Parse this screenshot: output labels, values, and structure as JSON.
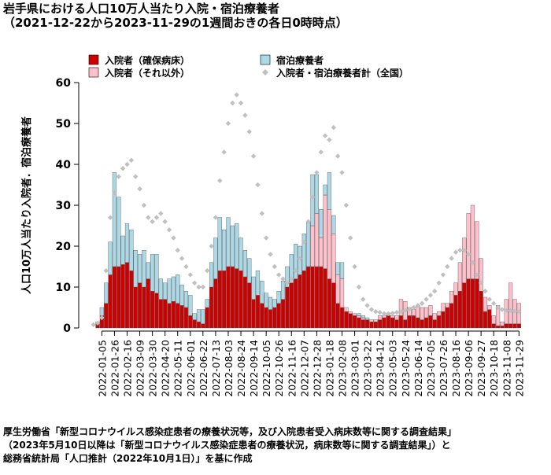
{
  "chart_data": {
    "type": "bar",
    "stacked": true,
    "title": "岩手県における人口10万人当たり入院・宿泊療養者",
    "subtitle": "（2021-12-22から2023-11-29の1週間おきの各日0時時点）",
    "y_label": "人口10万人当たり入院者．宿泊療養者",
    "source": [
      "厚生労働省「新型コロナウイルス感染症患者の療養状況等，及び入院患者受入病床数等に関する調査結果」",
      "（2023年5月10日以降は「新型コロナウイルス感染症患者の療養状況，病床数等に関する調査結果」）と",
      "総務省統計局「人口推計（2022年10月1日）」を基に作成"
    ],
    "ylim": [
      0,
      60
    ],
    "yticks": [
      0,
      10,
      20,
      30,
      40,
      50,
      60
    ],
    "grid": false,
    "categories": [
      null,
      null,
      "2022-01-05",
      null,
      null,
      "2022-01-26",
      null,
      null,
      "2022-02-16",
      null,
      null,
      "2022-03-09",
      null,
      null,
      "2022-03-30",
      null,
      null,
      "2022-04-20",
      null,
      null,
      "2022-05-11",
      null,
      null,
      "2022-06-01",
      null,
      null,
      "2022-06-22",
      null,
      null,
      "2022-07-13",
      null,
      null,
      "2022-08-03",
      null,
      null,
      "2022-08-24",
      null,
      null,
      "2022-09-14",
      null,
      null,
      "2022-10-05",
      null,
      null,
      "2022-10-26",
      null,
      null,
      "2022-11-16",
      null,
      null,
      "2022-12-07",
      null,
      null,
      "2022-12-28",
      null,
      null,
      "2023-01-18",
      null,
      null,
      "2023-02-08",
      null,
      null,
      "2023-03-01",
      null,
      null,
      "2023-03-22",
      null,
      null,
      "2023-04-12",
      null,
      null,
      "2023-05-03",
      null,
      null,
      "2023-05-24",
      null,
      null,
      "2023-06-14",
      null,
      null,
      "2023-07-05",
      null,
      null,
      "2023-07-26",
      null,
      null,
      "2023-08-16",
      null,
      null,
      "2023-09-06",
      null,
      null,
      "2023-09-27",
      null,
      null,
      "2023-10-18",
      null,
      null,
      "2023-11-08",
      null,
      null,
      "2023-11-29"
    ],
    "series": [
      {
        "name": "入院者（確保病床）",
        "type": "bar",
        "color": "#cc0000",
        "values": [
          0,
          1,
          3,
          6,
          13,
          15,
          15,
          15.5,
          16,
          14,
          10,
          11,
          10,
          12,
          9,
          8.5,
          7,
          7,
          6,
          6.5,
          6,
          5.5,
          5,
          3,
          2,
          1.5,
          1,
          5,
          10,
          12,
          14,
          14,
          15,
          15,
          14.5,
          14,
          12.5,
          11,
          7,
          8,
          6,
          5,
          4.5,
          5,
          6,
          7,
          10,
          11,
          12,
          13,
          14,
          15,
          15,
          15,
          15,
          14.5,
          12,
          11,
          6,
          5,
          4,
          3.5,
          3,
          2.5,
          2,
          2,
          1.5,
          1.5,
          2,
          2.5,
          3,
          2.5,
          2,
          3,
          2,
          3,
          3,
          2.5,
          2,
          2.5,
          3,
          2,
          3,
          4,
          5,
          6,
          8,
          9,
          11,
          12,
          12,
          12,
          9,
          4,
          4.5,
          1,
          0.5,
          0.5,
          1,
          1,
          1,
          1
        ]
      },
      {
        "name": "入院者（それ以外）",
        "type": "bar",
        "color": "#ffc0cb",
        "values": [
          0,
          0,
          0,
          0,
          0,
          0,
          0,
          0,
          0,
          0,
          0,
          0,
          0,
          0,
          0,
          0,
          0,
          0,
          0,
          0,
          0,
          0,
          0,
          0,
          0,
          0,
          0,
          0,
          0,
          0,
          0,
          0,
          0,
          0,
          0,
          0,
          0,
          0,
          0,
          0,
          0,
          0,
          0,
          0,
          0,
          0,
          0,
          0,
          0,
          0,
          0,
          0,
          10,
          13,
          7,
          18,
          17,
          12,
          7,
          7,
          1,
          0.5,
          0.5,
          0.5,
          0.5,
          0,
          0.5,
          0.5,
          1,
          0.5,
          0.5,
          0.5,
          1,
          4,
          4.5,
          2,
          1.5,
          3,
          3,
          2.5,
          2.5,
          1.5,
          1,
          2,
          1,
          3,
          3,
          7,
          11,
          16,
          18,
          14,
          8,
          3.5,
          1,
          2,
          5,
          1,
          6,
          10,
          6,
          5
        ]
      },
      {
        "name": "宿泊療養者",
        "type": "bar",
        "color": "#add8e6",
        "values": [
          0,
          0.5,
          2,
          5,
          8,
          23,
          17,
          7,
          9.5,
          10,
          9,
          7,
          9,
          4,
          9,
          9.5,
          5,
          4,
          6,
          6,
          7,
          5,
          4,
          5,
          1.5,
          3,
          3.5,
          2,
          6,
          10,
          13,
          10,
          12,
          10,
          11,
          8,
          6.5,
          6,
          5.5,
          6,
          5.5,
          3.5,
          3,
          2,
          3,
          4.5,
          5,
          7,
          8.5,
          7,
          9,
          11,
          12.5,
          9.5,
          7,
          2.5,
          9,
          4.5,
          3,
          4,
          0,
          0,
          0,
          0.5,
          0.5,
          0.5,
          0,
          0,
          0,
          0,
          0,
          0,
          0,
          0,
          0,
          0,
          0,
          0,
          0,
          0,
          0,
          0,
          0,
          0,
          0,
          0,
          0,
          0,
          0,
          0,
          0,
          0,
          0,
          0,
          0,
          0,
          0,
          0,
          0,
          0,
          0,
          0
        ]
      },
      {
        "name": "入院者・宿泊療養者計（全国）",
        "type": "scatter",
        "color": "#c0c0c0",
        "values": [
          0.8,
          1.2,
          2.5,
          14,
          27,
          33,
          37,
          39,
          40,
          41,
          37,
          34,
          30,
          27,
          26,
          27,
          28,
          26,
          24,
          22,
          19,
          17,
          15,
          13,
          11,
          10,
          10,
          14,
          20,
          27,
          36,
          43,
          50,
          55,
          57,
          55,
          52,
          48,
          42,
          35,
          28,
          22,
          18,
          15,
          13,
          12,
          11,
          12,
          14,
          17,
          21,
          26,
          32,
          38,
          43,
          47,
          46,
          49,
          42,
          38,
          30,
          22,
          15,
          10,
          7,
          5.5,
          4.5,
          4,
          3.8,
          3.5,
          3.5,
          3.6,
          3.8,
          4,
          4.3,
          4.6,
          5,
          5.5,
          6,
          7,
          8,
          9,
          11,
          13,
          15,
          17,
          18.5,
          19,
          19,
          18,
          16,
          13,
          11,
          9,
          7,
          6,
          5,
          4.5,
          4.3,
          4.2,
          4.1,
          4
        ]
      }
    ]
  }
}
